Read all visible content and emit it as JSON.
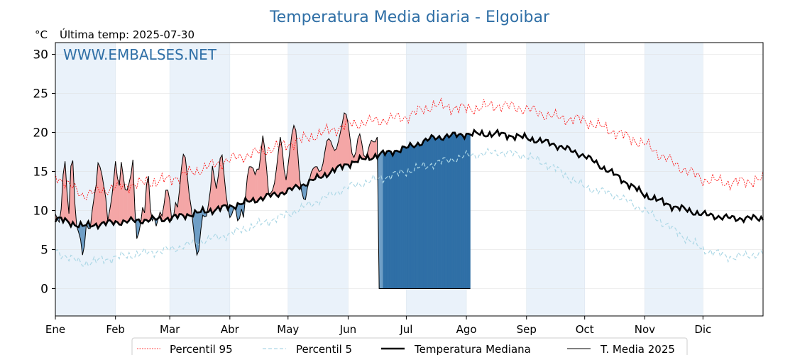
{
  "chart_data": {
    "type": "line",
    "title": "Temperatura Media diaria - Elgoibar",
    "unit": "°C",
    "last_temp_label": "Última temp: 2025-07-30",
    "watermark": "WWW.EMBALSES.NET",
    "ylim": [
      -3.5,
      31.5
    ],
    "yticks": [
      0,
      5,
      10,
      15,
      20,
      25,
      30
    ],
    "xlim_days": [
      1,
      366
    ],
    "months": [
      {
        "label": "Ene",
        "day": 1
      },
      {
        "label": "Feb",
        "day": 32
      },
      {
        "label": "Mar",
        "day": 60
      },
      {
        "label": "Abr",
        "day": 91
      },
      {
        "label": "May",
        "day": 121
      },
      {
        "label": "Jun",
        "day": 152
      },
      {
        "label": "Jul",
        "day": 182
      },
      {
        "label": "Ago",
        "day": 213
      },
      {
        "label": "Sep",
        "day": 244
      },
      {
        "label": "Oct",
        "day": 274
      },
      {
        "label": "Nov",
        "day": 305
      },
      {
        "label": "Dic",
        "day": 335
      }
    ],
    "grid": true,
    "legend_position": "bottom-outside",
    "colors": {
      "p95": "#ff0000",
      "p5": "#add8e6",
      "median": "#000000",
      "current": "#000000",
      "above_fill": "#f4a6a6",
      "below_fill": "#6e9ec6",
      "gap_fill": "#2f6fa6",
      "band": "#eaf2fa"
    },
    "series": [
      {
        "name": "Percentil 95",
        "key": "p95",
        "anchors": [
          [
            1,
            14.5
          ],
          [
            15,
            12
          ],
          [
            32,
            13
          ],
          [
            60,
            14
          ],
          [
            91,
            16.5
          ],
          [
            121,
            18.5
          ],
          [
            152,
            21
          ],
          [
            182,
            22
          ],
          [
            196,
            23.5
          ],
          [
            213,
            23
          ],
          [
            230,
            23.5
          ],
          [
            244,
            23
          ],
          [
            258,
            22
          ],
          [
            274,
            21.5
          ],
          [
            290,
            20
          ],
          [
            305,
            18.5
          ],
          [
            320,
            16
          ],
          [
            335,
            14
          ],
          [
            350,
            13.5
          ],
          [
            366,
            14
          ]
        ]
      },
      {
        "name": "Percentil 5",
        "key": "p5",
        "anchors": [
          [
            1,
            4.8
          ],
          [
            15,
            3.2
          ],
          [
            32,
            4
          ],
          [
            60,
            5
          ],
          [
            91,
            7
          ],
          [
            121,
            9.5
          ],
          [
            152,
            13
          ],
          [
            182,
            15
          ],
          [
            196,
            16
          ],
          [
            213,
            17
          ],
          [
            230,
            17.5
          ],
          [
            244,
            17
          ],
          [
            258,
            15.5
          ],
          [
            274,
            13
          ],
          [
            290,
            12
          ],
          [
            305,
            10
          ],
          [
            320,
            7.5
          ],
          [
            335,
            5
          ],
          [
            350,
            4
          ],
          [
            366,
            4.5
          ]
        ]
      },
      {
        "name": "Temperatura Mediana",
        "key": "median",
        "anchors": [
          [
            1,
            9
          ],
          [
            15,
            8
          ],
          [
            32,
            8.5
          ],
          [
            60,
            9
          ],
          [
            91,
            10.5
          ],
          [
            121,
            12.5
          ],
          [
            135,
            14
          ],
          [
            152,
            16
          ],
          [
            166,
            17
          ],
          [
            182,
            18
          ],
          [
            196,
            19.3
          ],
          [
            213,
            19.8
          ],
          [
            230,
            19.8
          ],
          [
            244,
            19.3
          ],
          [
            258,
            18.5
          ],
          [
            274,
            17
          ],
          [
            290,
            14.5
          ],
          [
            305,
            12
          ],
          [
            320,
            10.5
          ],
          [
            335,
            9.5
          ],
          [
            350,
            9
          ],
          [
            366,
            9
          ]
        ]
      },
      {
        "name": "T. Media 2025",
        "key": "current",
        "values": [
          9.6,
          8.9,
          8.5,
          10.2,
          14.6,
          16.3,
          12.4,
          9.6,
          15.7,
          16.4,
          11.1,
          8.0,
          7.2,
          6.3,
          4.3,
          5.5,
          8.3,
          7.7,
          7.7,
          10.0,
          11.7,
          13.2,
          16.1,
          15.6,
          14.6,
          13.1,
          11.6,
          8.7,
          10.0,
          11.5,
          13.7,
          16.3,
          14.2,
          13.2,
          16.2,
          14.4,
          12.7,
          12.6,
          13.5,
          14.6,
          16.5,
          10.2,
          6.4,
          7.1,
          8.4,
          10.4,
          9.7,
          13.3,
          14.4,
          10.2,
          8.7,
          9.1,
          8.0,
          8.9,
          9.8,
          9.3,
          10.7,
          12.6,
          12.6,
          11.3,
          8.8,
          9.3,
          11.0,
          10.4,
          12.6,
          15.4,
          17.2,
          16.8,
          14.6,
          12.1,
          10.5,
          8.2,
          6.0,
          4.3,
          4.9,
          7.5,
          9.4,
          9.2,
          9.3,
          10.9,
          12.7,
          15.7,
          14.2,
          12.8,
          14.4,
          16.7,
          17.1,
          14.6,
          12.1,
          10.4,
          9.1,
          9.5,
          10.3,
          10.1,
          8.7,
          9.0,
          10.2,
          9.1,
          11.6,
          14.3,
          15.6,
          15.6,
          15.4,
          14.6,
          15.3,
          15.3,
          17.3,
          19.6,
          17.9,
          15.2,
          12.1,
          12.2,
          12.6,
          13.5,
          15.3,
          17.5,
          19.4,
          17.9,
          15.2,
          13.9,
          15.8,
          17.8,
          19.8,
          20.9,
          20.3,
          17.5,
          14.1,
          12.5,
          11.5,
          11.4,
          12.9,
          13.9,
          14.9,
          15.4,
          15.6,
          15.6,
          15.0,
          15.1,
          16.0,
          17.5,
          18.9,
          19.2,
          18.9,
          18.2,
          17.7,
          17.9,
          18.9,
          20.0,
          21.2,
          22.5,
          22.3,
          21.1,
          19.2,
          17.3,
          16.8,
          17.5,
          19.2,
          19.8,
          18.7,
          17.1,
          16.8,
          17.4,
          18.4,
          19.0,
          18.8,
          18.8,
          19.4,
          0.0,
          0.0,
          0.0,
          0.0,
          0.0,
          0.0,
          0.0,
          0.0,
          0.0,
          0.0,
          0.0,
          0.0,
          0.0,
          0.0,
          0.0,
          0.0,
          0.0,
          0.0,
          0.0,
          0.0,
          0.0,
          0.0,
          0.0,
          0.0,
          0.0,
          0.0,
          0.0,
          0.0,
          0.0,
          0.0,
          0.0,
          0.0,
          0.0,
          0.0,
          0.0,
          0.0,
          0.0,
          0.0,
          0.0,
          0.0,
          0.0,
          0.0,
          0.0,
          0.0,
          0.0,
          0.0,
          0.0,
          0.0
        ]
      }
    ],
    "legend": [
      {
        "label": "Percentil 95",
        "style": "p95"
      },
      {
        "label": "Percentil 5",
        "style": "p5"
      },
      {
        "label": "Temperatura Mediana",
        "style": "median"
      },
      {
        "label": "T. Media 2025",
        "style": "current"
      }
    ]
  }
}
